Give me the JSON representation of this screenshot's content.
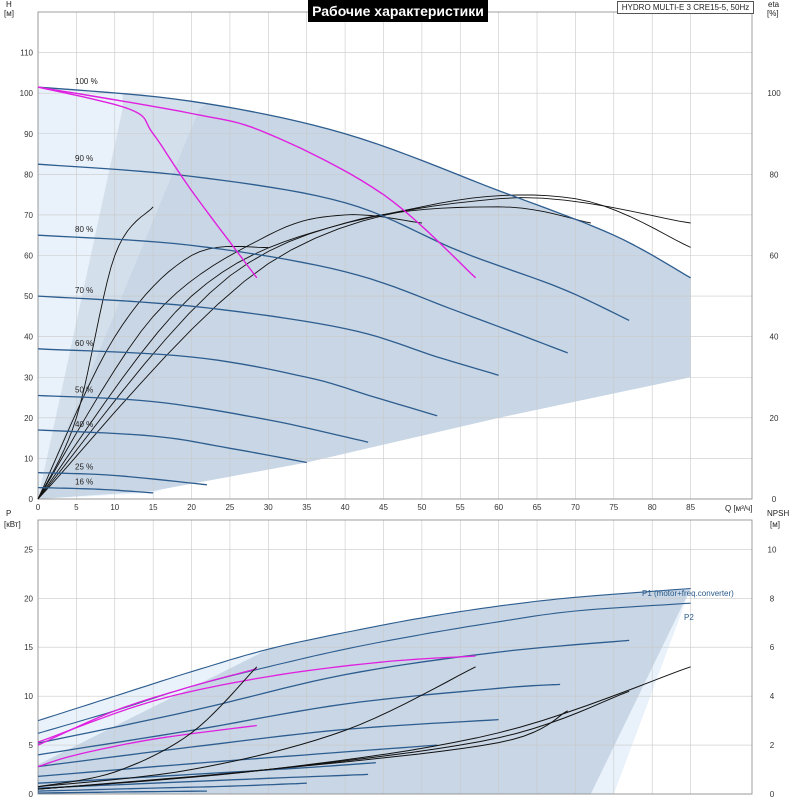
{
  "title": "Рабочие характеристики",
  "subtitle": "HYDRO MULTI-E 3 CRE15-5, 50Hz",
  "chart_data": [
    {
      "type": "line",
      "name": "head",
      "xlabel": "Q [м³/ч]",
      "ylabel": "H [м]",
      "ylabel_right": "eta [%]",
      "xlim": [
        0,
        93
      ],
      "ylim": [
        0,
        120
      ],
      "xticks": [
        0,
        5,
        10,
        15,
        20,
        25,
        30,
        35,
        40,
        45,
        50,
        55,
        60,
        65,
        70,
        75,
        80,
        85
      ],
      "yticks": [
        0,
        10,
        20,
        30,
        40,
        50,
        60,
        70,
        80,
        90,
        100,
        110
      ],
      "eta_ticks": [
        0,
        20,
        40,
        60,
        80,
        100
      ],
      "grid": true,
      "speed_labels": [
        "100 %",
        "90 %",
        "80 %",
        "70 %",
        "60 %",
        "50 %",
        "40 %",
        "25 %",
        "16 %"
      ],
      "speed_curves": [
        {
          "label": "100 %",
          "q": [
            0,
            20,
            40,
            60,
            75,
            85
          ],
          "h": [
            101.5,
            98,
            90,
            76,
            65,
            54.5
          ]
        },
        {
          "label": "90 %",
          "q": [
            0,
            20,
            40,
            55,
            68,
            77
          ],
          "h": [
            82.5,
            79.5,
            73,
            61,
            52,
            44
          ]
        },
        {
          "label": "80 %",
          "q": [
            0,
            20,
            40,
            55,
            69
          ],
          "h": [
            65,
            62.5,
            56,
            46,
            36
          ]
        },
        {
          "label": "70 %",
          "q": [
            0,
            20,
            40,
            52,
            60
          ],
          "h": [
            50,
            47.5,
            42,
            35,
            30.5
          ]
        },
        {
          "label": "60 %",
          "q": [
            0,
            20,
            35,
            44,
            52
          ],
          "h": [
            37,
            35,
            30,
            25,
            20.5
          ]
        },
        {
          "label": "50 %",
          "q": [
            0,
            15,
            30,
            43
          ],
          "h": [
            25.5,
            24,
            19.5,
            14
          ]
        },
        {
          "label": "40 %",
          "q": [
            0,
            15,
            25,
            35
          ],
          "h": [
            17,
            15.5,
            12.5,
            9
          ]
        },
        {
          "label": "25 %",
          "q": [
            0,
            10,
            22
          ],
          "h": [
            6.5,
            5.8,
            3.5
          ]
        },
        {
          "label": "16 %",
          "q": [
            0,
            8,
            15
          ],
          "h": [
            2.8,
            2.4,
            1.5
          ]
        }
      ],
      "limit_curves": [
        {
          "q": [
            0,
            12,
            15,
            20,
            28.5
          ],
          "h": [
            101.5,
            96,
            90,
            76,
            54.5
          ]
        },
        {
          "q": [
            0,
            20,
            30,
            45,
            57
          ],
          "h": [
            101.5,
            95,
            90,
            75,
            54.5
          ]
        }
      ],
      "efficiency_curves": [
        {
          "q": [
            0,
            5,
            10,
            15
          ],
          "eta": [
            0,
            20,
            60,
            72
          ]
        },
        {
          "q": [
            0,
            10,
            20,
            30
          ],
          "eta": [
            0,
            40,
            60,
            62
          ]
        },
        {
          "q": [
            0,
            15,
            30,
            40,
            50
          ],
          "eta": [
            0,
            45,
            65,
            70,
            68
          ]
        },
        {
          "q": [
            0,
            20,
            40,
            60,
            72
          ],
          "eta": [
            0,
            50,
            68,
            72,
            68
          ]
        },
        {
          "q": [
            0,
            25,
            50,
            70,
            85
          ],
          "eta": [
            0,
            55,
            72,
            74,
            62
          ]
        },
        {
          "q": [
            0,
            30,
            60,
            85
          ],
          "eta": [
            0,
            58,
            74,
            68
          ]
        }
      ]
    },
    {
      "type": "line",
      "name": "power",
      "xlabel": "Q [м³/ч]",
      "ylabel": "P [кВт]",
      "ylabel_right": "NPSH [м]",
      "xlim": [
        0,
        93
      ],
      "ylim": [
        0,
        28
      ],
      "yticks": [
        0,
        5,
        10,
        15,
        20,
        25
      ],
      "npsh_ticks": [
        0,
        2,
        4,
        6,
        8,
        10
      ],
      "grid": true,
      "series": [
        {
          "name": "P1 (motor+freq.converter)",
          "q": [
            0,
            10,
            20,
            30,
            40,
            50,
            60,
            70,
            85
          ],
          "p": [
            7.5,
            10,
            12.5,
            14.8,
            16.5,
            18,
            19.2,
            20.1,
            21
          ]
        },
        {
          "name": "P2",
          "q": [
            0,
            10,
            20,
            30,
            40,
            50,
            60,
            70,
            85
          ],
          "p": [
            6.2,
            8.5,
            11,
            13,
            14.8,
            16.3,
            17.6,
            18.7,
            19.5
          ]
        }
      ],
      "power_curves": [
        {
          "q": [
            0,
            20,
            40,
            60,
            77
          ],
          "p": [
            5.2,
            8.5,
            12.2,
            14.5,
            15.7
          ]
        },
        {
          "q": [
            0,
            20,
            40,
            60,
            68
          ],
          "p": [
            4,
            6.5,
            9.2,
            10.8,
            11.2
          ]
        },
        {
          "q": [
            0,
            20,
            40,
            60
          ],
          "p": [
            2.8,
            4.8,
            6.6,
            7.6
          ]
        },
        {
          "q": [
            0,
            20,
            40,
            52
          ],
          "p": [
            1.8,
            3.1,
            4.3,
            5
          ]
        },
        {
          "q": [
            0,
            20,
            35,
            44
          ],
          "p": [
            1.1,
            2,
            2.7,
            3.2
          ]
        },
        {
          "q": [
            0,
            15,
            30,
            43
          ],
          "p": [
            0.6,
            1.1,
            1.6,
            2
          ]
        },
        {
          "q": [
            0,
            15,
            25,
            35
          ],
          "p": [
            0.3,
            0.6,
            0.8,
            1.1
          ]
        },
        {
          "q": [
            0,
            10,
            22
          ],
          "p": [
            0.1,
            0.2,
            0.3
          ]
        }
      ],
      "magenta_power_curves": [
        {
          "q": [
            0,
            10,
            20,
            28.5
          ],
          "p": [
            5,
            8.5,
            11,
            12.8
          ]
        },
        {
          "q": [
            0,
            15,
            30,
            45,
            57
          ],
          "p": [
            5.3,
            9.5,
            12,
            13.5,
            14.1
          ]
        },
        {
          "q": [
            0,
            5,
            15,
            28.5
          ],
          "p": [
            2.8,
            4,
            5.6,
            7
          ]
        }
      ],
      "npsh_curves": [
        {
          "q": [
            0,
            10,
            20,
            28.5
          ],
          "npsh": [
            0.3,
            0.9,
            2.5,
            5.2
          ]
        },
        {
          "q": [
            0,
            20,
            40,
            57
          ],
          "npsh": [
            0.3,
            1,
            2.6,
            5.2
          ]
        },
        {
          "q": [
            0,
            30,
            60,
            85
          ],
          "npsh": [
            0.2,
            1,
            2.5,
            5.2
          ]
        },
        {
          "q": [
            0,
            30,
            60,
            77
          ],
          "npsh": [
            0.2,
            1,
            2.3,
            4.2
          ]
        },
        {
          "q": [
            0,
            30,
            60,
            69
          ],
          "npsh": [
            0.2,
            1,
            2.1,
            3.4
          ]
        }
      ]
    }
  ]
}
